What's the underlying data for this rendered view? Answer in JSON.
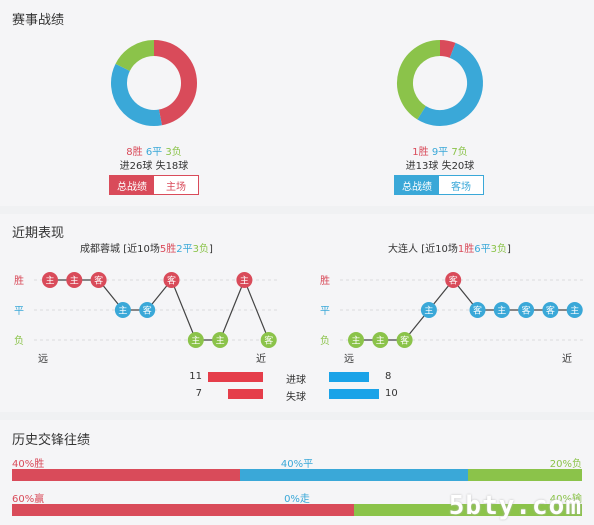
{
  "colors": {
    "win": "#d94b5a",
    "draw": "#3aa8d8",
    "loss": "#8bc34a",
    "bar_red": "#e53d4a",
    "bar_blue": "#1aa3e8"
  },
  "record": {
    "title": "赛事战绩",
    "home": {
      "chart_data": {
        "type": "pie",
        "categories": [
          "胜",
          "平",
          "负"
        ],
        "values": [
          8,
          6,
          3
        ]
      },
      "win": "8胜",
      "draw": "6平",
      "loss": "3负",
      "goals": "进26球 失18球",
      "tab_total": "总战绩",
      "tab_venue": "主场"
    },
    "away": {
      "chart_data": {
        "type": "pie",
        "categories": [
          "胜",
          "平",
          "负"
        ],
        "values": [
          1,
          9,
          7
        ]
      },
      "win": "1胜",
      "draw": "9平",
      "loss": "7负",
      "goals": "进13球 失20球",
      "tab_total": "总战绩",
      "tab_venue": "客场"
    }
  },
  "recent": {
    "title": "近期表现",
    "home_team": "成都蓉城",
    "away_team": "大连人",
    "row_labels": [
      "胜",
      "平",
      "负"
    ],
    "far": "远",
    "near": "近",
    "home_summary": {
      "prefix": "[近10场",
      "win": "5胜",
      "draw": "2平",
      "loss": "3负",
      "suffix": "]"
    },
    "away_summary": {
      "prefix": "[近10场",
      "win": "1胜",
      "draw": "6平",
      "loss": "3负",
      "suffix": "]"
    },
    "home_seq": [
      {
        "r": "W",
        "v": "主"
      },
      {
        "r": "W",
        "v": "主"
      },
      {
        "r": "W",
        "v": "客"
      },
      {
        "r": "D",
        "v": "主"
      },
      {
        "r": "D",
        "v": "客"
      },
      {
        "r": "W",
        "v": "客"
      },
      {
        "r": "L",
        "v": "主"
      },
      {
        "r": "L",
        "v": "主"
      },
      {
        "r": "W",
        "v": "主"
      },
      {
        "r": "L",
        "v": "客"
      }
    ],
    "away_seq": [
      {
        "r": "L",
        "v": "主"
      },
      {
        "r": "L",
        "v": "主"
      },
      {
        "r": "L",
        "v": "客"
      },
      {
        "r": "D",
        "v": "主"
      },
      {
        "r": "W",
        "v": "客"
      },
      {
        "r": "D",
        "v": "客"
      },
      {
        "r": "D",
        "v": "主"
      },
      {
        "r": "D",
        "v": "客"
      },
      {
        "r": "D",
        "v": "客"
      },
      {
        "r": "D",
        "v": "主"
      }
    ],
    "stats": [
      {
        "label": "进球",
        "home": 11,
        "away": 8
      },
      {
        "label": "失球",
        "home": 7,
        "away": 10
      }
    ]
  },
  "history": {
    "title": "历史交锋往绩",
    "row1": {
      "a": "40%胜",
      "b": "40%平",
      "c": "20%负",
      "va": 40,
      "vb": 40,
      "vc": 20
    },
    "row2": {
      "a": "60%赢",
      "b": "0%走",
      "c": "40%输",
      "va": 60,
      "vb": 0,
      "vc": 40
    }
  },
  "watermark": "5bty.com"
}
